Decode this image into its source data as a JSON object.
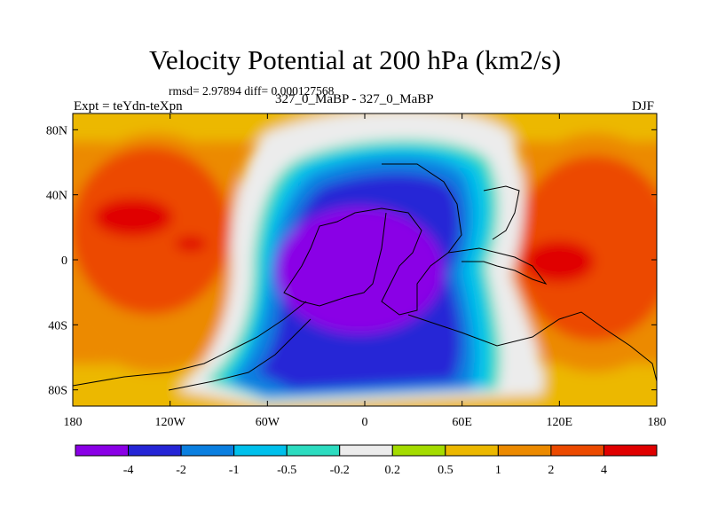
{
  "chart_data": {
    "type": "heatmap",
    "title": "Velocity Potential at 200 hPa (km2/s)",
    "stats_text": "rmsd= 2.97894 diff= 0.000127568",
    "left_label": "Expt = teYdn-teXpn",
    "center_label": "327_0_MaBP - 327_0_MaBP",
    "right_label": "DJF",
    "x_ticks": [
      "180",
      "120W",
      "60W",
      "0",
      "60E",
      "120E",
      "180"
    ],
    "x_tick_values": [
      -180,
      -120,
      -60,
      0,
      60,
      120,
      180
    ],
    "y_ticks": [
      "80N",
      "40N",
      "0",
      "40S",
      "80S"
    ],
    "y_tick_values": [
      80,
      40,
      0,
      -40,
      -80
    ],
    "xlim": [
      -180,
      180
    ],
    "ylim": [
      -90,
      90
    ],
    "colorbar": {
      "labels": [
        "-4",
        "-2",
        "-1",
        "-0.5",
        "-0.2",
        "0.2",
        "0.5",
        "1",
        "2",
        "4"
      ],
      "colors": [
        "#8a00e6",
        "#2525d6",
        "#0a7fe0",
        "#00c0ec",
        "#2cdcc0",
        "#ececec",
        "#a4dc00",
        "#ecb800",
        "#ec8a00",
        "#ec4a00",
        "#e00000"
      ]
    },
    "field_description_levels": {
      "min_region": "central Atlantic / Africa, values below -4",
      "max_regions": [
        "eastern Pacific near 150W, 20N, values above 4",
        "western Pacific near 120E, 0, values near 4"
      ]
    }
  }
}
